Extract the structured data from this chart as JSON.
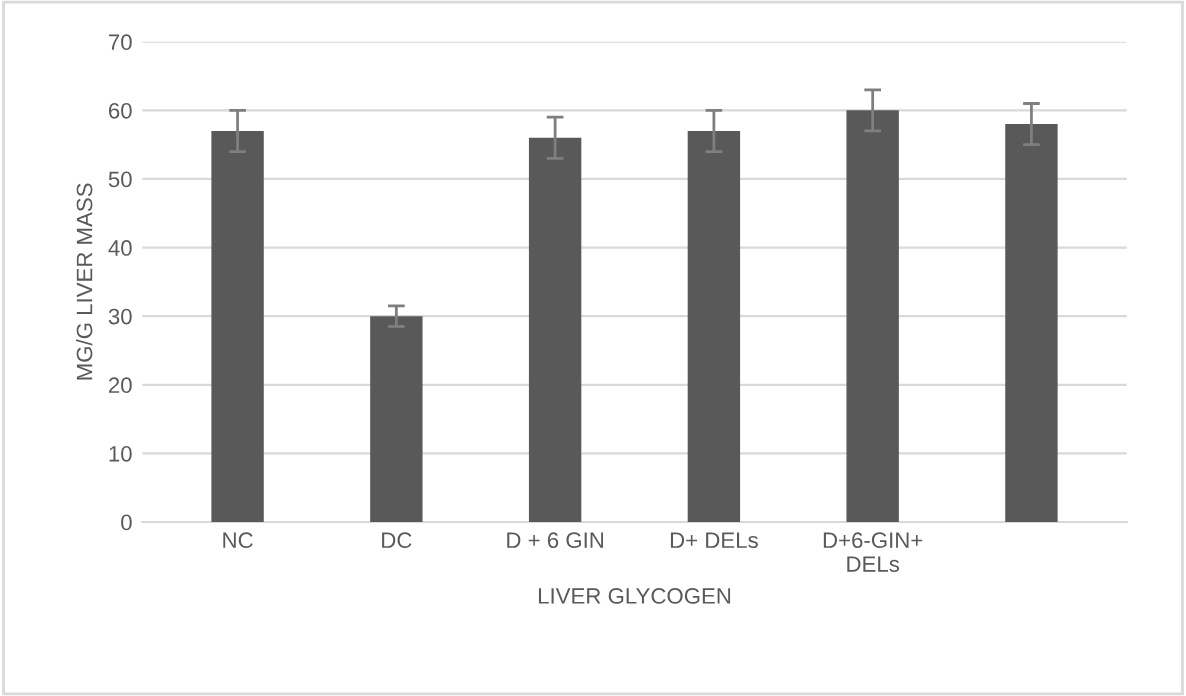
{
  "chart_data": {
    "type": "bar",
    "xlabel": "LIVER GLYCOGEN",
    "ylabel": "MG/G LIVER MASS",
    "categories": [
      "NC",
      "DC",
      "D + 6 GIN",
      "D+ DELs",
      "D+6-GIN+\nDELs",
      null
    ],
    "values": [
      57,
      30,
      56,
      57,
      60,
      58
    ],
    "errors": [
      3,
      1.5,
      3,
      3,
      3,
      3
    ],
    "color": "#595959",
    "ylim": [
      0,
      70
    ],
    "yticks": [
      0,
      10,
      20,
      30,
      40,
      50,
      60,
      70
    ],
    "grid": "y",
    "legend": false
  }
}
